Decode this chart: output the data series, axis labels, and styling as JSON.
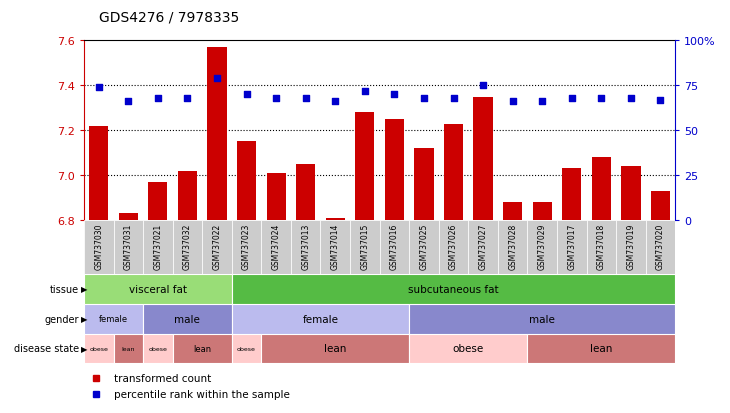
{
  "title": "GDS4276 / 7978335",
  "samples": [
    "GSM737030",
    "GSM737031",
    "GSM737021",
    "GSM737032",
    "GSM737022",
    "GSM737023",
    "GSM737024",
    "GSM737013",
    "GSM737014",
    "GSM737015",
    "GSM737016",
    "GSM737025",
    "GSM737026",
    "GSM737027",
    "GSM737028",
    "GSM737029",
    "GSM737017",
    "GSM737018",
    "GSM737019",
    "GSM737020"
  ],
  "bar_values": [
    7.22,
    6.83,
    6.97,
    7.02,
    7.57,
    7.15,
    7.01,
    7.05,
    6.81,
    7.28,
    7.25,
    7.12,
    7.23,
    7.35,
    6.88,
    6.88,
    7.03,
    7.08,
    7.04,
    6.93
  ],
  "dot_values": [
    74,
    66,
    68,
    68,
    79,
    70,
    68,
    68,
    66,
    72,
    70,
    68,
    68,
    75,
    66,
    66,
    68,
    68,
    68,
    67
  ],
  "ylim": [
    6.8,
    7.6
  ],
  "yticks": [
    6.8,
    7.0,
    7.2,
    7.4,
    7.6
  ],
  "y2lim": [
    0,
    100
  ],
  "y2ticks": [
    0,
    25,
    50,
    75,
    100
  ],
  "y2ticklabels": [
    "0",
    "25",
    "50",
    "75",
    "100%"
  ],
  "bar_color": "#cc0000",
  "dot_color": "#0000cc",
  "background_color": "#ffffff",
  "sample_bg_color": "#cccccc",
  "tissue_row": {
    "label": "tissue",
    "segments": [
      {
        "label": "visceral fat",
        "start": 0,
        "end": 5,
        "color": "#99dd77"
      },
      {
        "label": "subcutaneous fat",
        "start": 5,
        "end": 20,
        "color": "#55bb44"
      }
    ]
  },
  "gender_row": {
    "label": "gender",
    "segments": [
      {
        "label": "female",
        "start": 0,
        "end": 2,
        "color": "#bbbbee"
      },
      {
        "label": "male",
        "start": 2,
        "end": 5,
        "color": "#8888cc"
      },
      {
        "label": "female",
        "start": 5,
        "end": 11,
        "color": "#bbbbee"
      },
      {
        "label": "male",
        "start": 11,
        "end": 20,
        "color": "#8888cc"
      }
    ]
  },
  "disease_row": {
    "label": "disease state",
    "segments": [
      {
        "label": "obese",
        "start": 0,
        "end": 1,
        "color": "#ffcccc"
      },
      {
        "label": "lean",
        "start": 1,
        "end": 2,
        "color": "#cc7777"
      },
      {
        "label": "obese",
        "start": 2,
        "end": 3,
        "color": "#ffcccc"
      },
      {
        "label": "lean",
        "start": 3,
        "end": 5,
        "color": "#cc7777"
      },
      {
        "label": "obese",
        "start": 5,
        "end": 6,
        "color": "#ffcccc"
      },
      {
        "label": "lean",
        "start": 6,
        "end": 11,
        "color": "#cc7777"
      },
      {
        "label": "obese",
        "start": 11,
        "end": 15,
        "color": "#ffcccc"
      },
      {
        "label": "lean",
        "start": 15,
        "end": 20,
        "color": "#cc7777"
      }
    ]
  },
  "legend": [
    {
      "label": "transformed count",
      "color": "#cc0000"
    },
    {
      "label": "percentile rank within the sample",
      "color": "#0000cc"
    }
  ]
}
